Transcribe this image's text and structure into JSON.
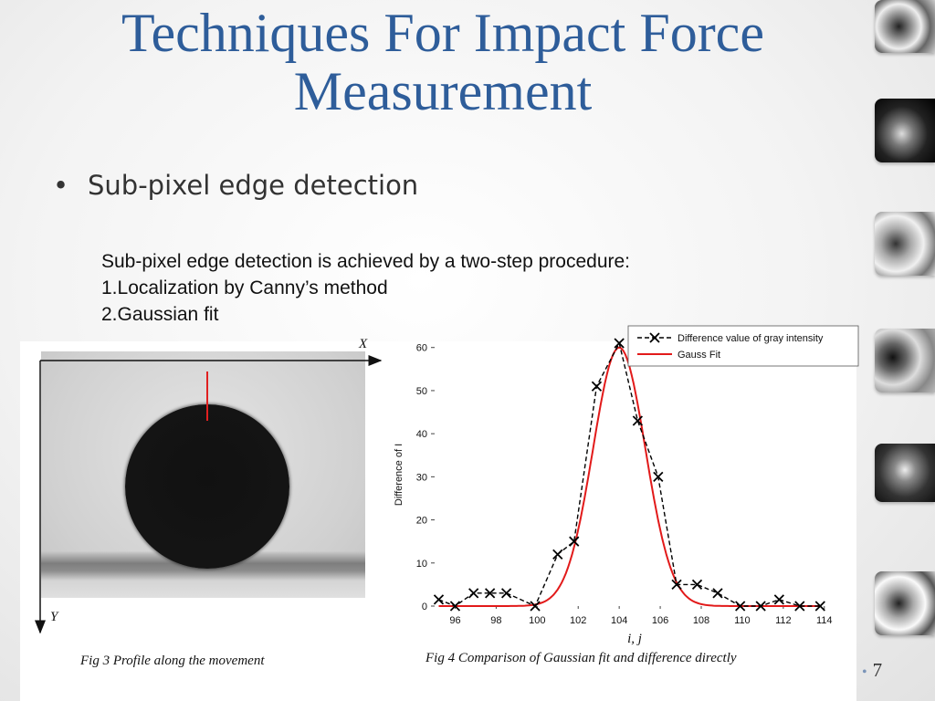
{
  "slide": {
    "title": "Techniques For Impact Force Measurement",
    "bullet": "Sub-pixel edge detection",
    "description": [
      "Sub-pixel edge detection is achieved by a two-step procedure:",
      "1.Localization by Canny’s method",
      "2.Gaussian fit"
    ],
    "page_number": "7",
    "fig3": {
      "caption": "Fig 3 Profile along the movement",
      "x_label": "X",
      "y_label": "Y"
    },
    "fig4": {
      "caption": "Fig 4 Comparison of Gaussian fit and difference directly"
    }
  },
  "chart_data": {
    "type": "line",
    "title": "",
    "xlabel": "i, j",
    "ylabel": "Difference of I",
    "xlim": [
      95,
      114.5
    ],
    "ylim": [
      0,
      61
    ],
    "x_ticks": [
      96,
      98,
      100,
      102,
      104,
      106,
      108,
      110,
      112,
      114
    ],
    "y_ticks": [
      0,
      10,
      20,
      30,
      40,
      50,
      60
    ],
    "legend_position": "top-right",
    "series": [
      {
        "name": "Difference value of gray intensity",
        "color": "#000000",
        "style": "dashed-x-markers",
        "x": [
          95.2,
          96,
          96.9,
          97.7,
          98.5,
          99.9,
          101,
          101.8,
          102.9,
          104,
          104.9,
          105.9,
          106.8,
          107.8,
          108.8,
          109.9,
          110.9,
          111.8,
          112.8,
          113.8
        ],
        "y": [
          1.5,
          0,
          3,
          3,
          3,
          0,
          12,
          15,
          51,
          61,
          43,
          30,
          5,
          5,
          3,
          0,
          0,
          1.5,
          0,
          0
        ]
      },
      {
        "name": "Gauss Fit",
        "color": "#e21a1a",
        "style": "solid",
        "model": {
          "amplitude": 60,
          "center": 104,
          "sigma": 1.28
        },
        "x_range": [
          95.2,
          113.8
        ]
      }
    ]
  },
  "side_thumbnails": [
    "swirl-cloud-image",
    "hummingbird-image",
    "swirl-cloud-image",
    "swirl-cloud-image",
    "hummingbird-image",
    "swirl-cloud-image"
  ]
}
